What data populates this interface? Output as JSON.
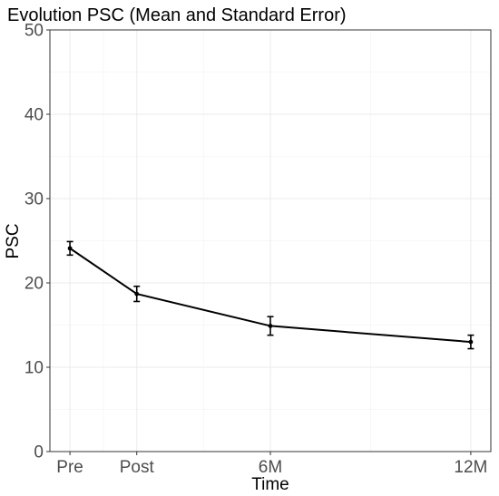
{
  "chart_data": {
    "type": "line",
    "title": "Evolution PSC (Mean and Standard Error)",
    "xlabel": "Time",
    "ylabel": "PSC",
    "x": [
      "Pre",
      "Post",
      "6M",
      "12M"
    ],
    "x_months": [
      0,
      2,
      6,
      12
    ],
    "x_tick_labels": [
      "Pre",
      "Post",
      "6M",
      "12M"
    ],
    "series": [
      {
        "values": [
          24.1,
          18.7,
          14.9,
          13.0
        ],
        "se": [
          0.8,
          0.9,
          1.1,
          0.8
        ],
        "color": "#000000"
      }
    ],
    "ylim": [
      0,
      50
    ],
    "y_ticks": [
      0,
      10,
      20,
      30,
      40,
      50
    ],
    "xlim": [
      -0.6,
      12.6
    ],
    "grid": true,
    "legend": "none"
  }
}
